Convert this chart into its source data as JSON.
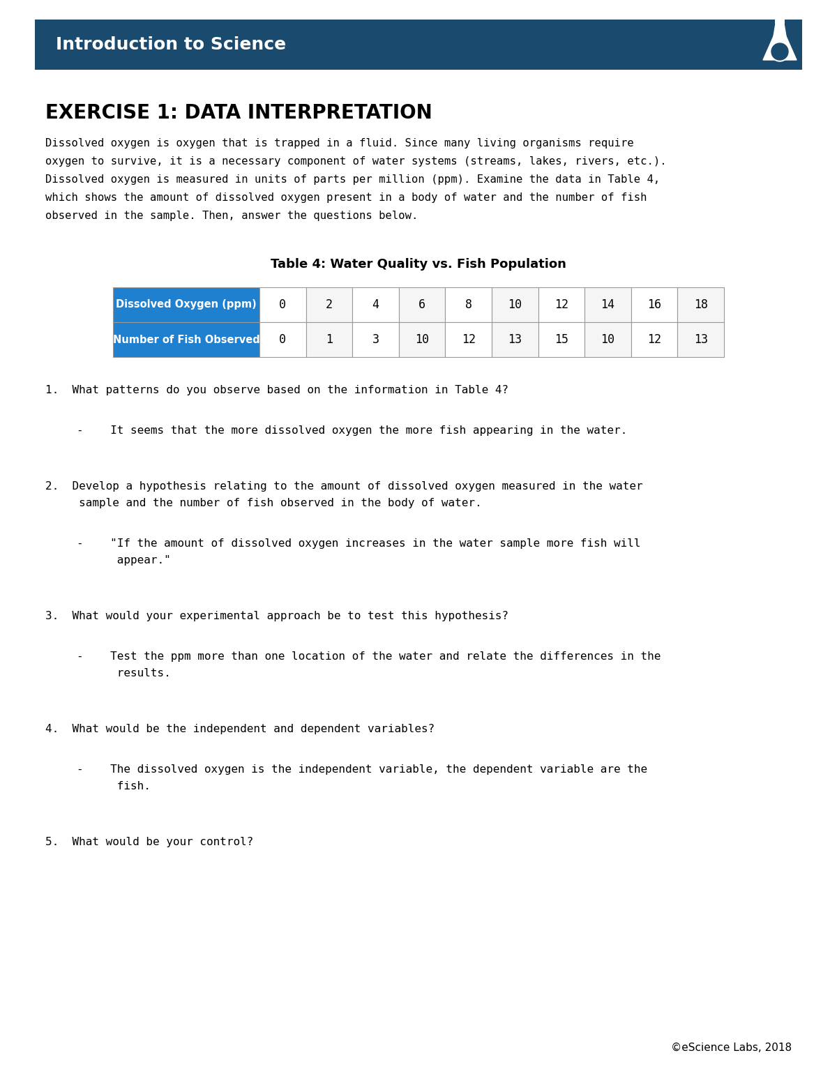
{
  "header_bg_color": "#1a4a6e",
  "header_text": "Introduction to Science",
  "header_text_color": "#ffffff",
  "exercise_title": "EXERCISE 1: DATA INTERPRETATION",
  "intro_lines": [
    "Dissolved oxygen is oxygen that is trapped in a fluid. Since many living organisms require",
    "oxygen to survive, it is a necessary component of water systems (streams, lakes, rivers, etc.).",
    "Dissolved oxygen is measured in units of parts per million (ppm). Examine the data in Table 4,",
    "which shows the amount of dissolved oxygen present in a body of water and the number of fish",
    "observed in the sample. Then, answer the questions below."
  ],
  "table_title": "Table 4: Water Quality vs. Fish Population",
  "table_row1_label": "Dissolved Oxygen (ppm)",
  "table_row2_label": "Number of Fish Observed",
  "table_row1_data": [
    "0",
    "2",
    "4",
    "6",
    "8",
    "10",
    "12",
    "14",
    "16",
    "18"
  ],
  "table_row2_data": [
    "0",
    "1",
    "3",
    "10",
    "12",
    "13",
    "15",
    "10",
    "12",
    "13"
  ],
  "table_header_bg": "#2080d0",
  "table_header_text_color": "#ffffff",
  "table_border_color": "#999999",
  "q1": "1.  What patterns do you observe based on the information in Table 4?",
  "a1": "-    It seems that the more dissolved oxygen the more fish appearing in the water.",
  "q2_line1": "2.  Develop a hypothesis relating to the amount of dissolved oxygen measured in the water",
  "q2_line2": "     sample and the number of fish observed in the body of water.",
  "a2_line1": "-    \"If the amount of dissolved oxygen increases in the water sample more fish will",
  "a2_line2": "      appear.\"",
  "q3": "3.  What would your experimental approach be to test this hypothesis?",
  "a3_line1": "-    Test the ppm more than one location of the water and relate the differences in the",
  "a3_line2": "      results.",
  "q4": "4.  What would be the independent and dependent variables?",
  "a4_line1": "-    The dissolved oxygen is the independent variable, the dependent variable are the",
  "a4_line2": "      fish.",
  "q5": "5.  What would be your control?",
  "footer_text": "©eScience Labs, 2018",
  "background_color": "#ffffff",
  "text_color": "#000000"
}
